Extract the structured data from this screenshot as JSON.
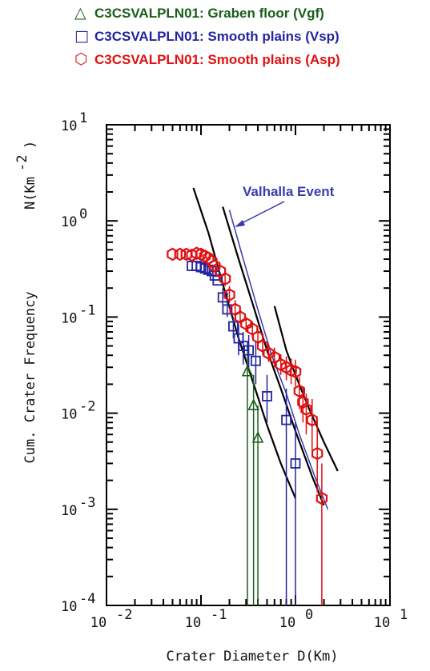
{
  "chart_data": {
    "type": "scatter",
    "x_scale": "log",
    "y_scale": "log",
    "xlim": [
      0.01,
      10
    ],
    "ylim": [
      0.0001,
      10
    ],
    "xlabel": "Crater Diameter D(Km)",
    "ylabel": "Cum. Crater Frequency",
    "ylabel_unit": "N(Km",
    "ylabel_unit_exp": "-2",
    "ylabel_unit_close": ")",
    "x_ticks": [
      {
        "value": 0.01,
        "base": "10",
        "exp": "-2"
      },
      {
        "value": 0.1,
        "base": "10",
        "exp": "-1"
      },
      {
        "value": 1,
        "base": "10",
        "exp": "0"
      },
      {
        "value": 10,
        "base": "10",
        "exp": "1"
      }
    ],
    "y_ticks": [
      {
        "value": 10,
        "base": "10",
        "exp": "1"
      },
      {
        "value": 1,
        "base": "10",
        "exp": "0"
      },
      {
        "value": 0.1,
        "base": "10",
        "exp": "-1"
      },
      {
        "value": 0.01,
        "base": "10",
        "exp": "-2"
      },
      {
        "value": 0.001,
        "base": "10",
        "exp": "-3"
      },
      {
        "value": 0.0001,
        "base": "10",
        "exp": "-4"
      }
    ],
    "legend_position": "top",
    "legend": [
      {
        "symbol": "△",
        "label": "C3CSVALPLN01: Graben floor (Vgf)",
        "color": "#1a5e1a"
      },
      {
        "symbol": "□",
        "label": "C3CSVALPLN01: Smooth plains (Vsp)",
        "color": "#2424a0"
      },
      {
        "symbol": "⬡",
        "label": "C3CSVALPLN01: Smooth plains (Asp)",
        "color": "#e01010"
      }
    ],
    "annotation": {
      "text": "Valhalla Event",
      "color": "#3a3ab0"
    },
    "series": [
      {
        "name": "C3CSVALPLN01: Graben floor (Vgf)",
        "marker": "triangle",
        "color": "#1a5e1a",
        "x": [
          0.31,
          0.36,
          0.4
        ],
        "y": [
          0.027,
          0.012,
          0.0055
        ],
        "err_down_to": [
          0.0001,
          0.0001,
          0.0001
        ],
        "err_up_to": [
          0.05,
          0.025,
          0.012
        ]
      },
      {
        "name": "C3CSVALPLN01: Smooth plains (Vsp)",
        "marker": "square",
        "color": "#2424a0",
        "x": [
          0.08,
          0.09,
          0.1,
          0.11,
          0.12,
          0.13,
          0.14,
          0.15,
          0.17,
          0.19,
          0.22,
          0.25,
          0.28,
          0.32,
          0.38,
          0.5,
          0.8,
          1.0
        ],
        "y": [
          0.34,
          0.34,
          0.33,
          0.32,
          0.31,
          0.3,
          0.27,
          0.24,
          0.16,
          0.12,
          0.08,
          0.06,
          0.05,
          0.045,
          0.035,
          0.015,
          0.0085,
          0.003
        ],
        "err_down_to": [
          null,
          null,
          null,
          null,
          null,
          null,
          null,
          null,
          0.13,
          0.1,
          0.06,
          0.04,
          0.032,
          0.03,
          0.02,
          0.008,
          0.0001,
          0.0001
        ],
        "err_up_to": [
          null,
          null,
          null,
          null,
          null,
          null,
          null,
          null,
          0.2,
          0.15,
          0.1,
          0.085,
          0.07,
          0.065,
          0.055,
          0.025,
          0.018,
          0.008
        ]
      },
      {
        "name": "C3CSVALPLN01: Smooth plains (Asp)",
        "marker": "hexagon",
        "color": "#e01010",
        "x": [
          0.05,
          0.06,
          0.07,
          0.08,
          0.09,
          0.1,
          0.11,
          0.12,
          0.13,
          0.14,
          0.16,
          0.18,
          0.2,
          0.23,
          0.26,
          0.3,
          0.35,
          0.4,
          0.45,
          0.52,
          0.6,
          0.7,
          0.8,
          0.9,
          1.0,
          1.1,
          1.2,
          1.3,
          1.5,
          1.7,
          1.9
        ],
        "y": [
          0.45,
          0.45,
          0.45,
          0.44,
          0.46,
          0.45,
          0.43,
          0.41,
          0.38,
          0.34,
          0.3,
          0.25,
          0.17,
          0.12,
          0.1,
          0.085,
          0.075,
          0.062,
          0.05,
          0.042,
          0.038,
          0.032,
          0.03,
          0.028,
          0.027,
          0.017,
          0.013,
          0.011,
          0.0085,
          0.0038,
          0.0013
        ],
        "err_down_to": [
          null,
          null,
          null,
          null,
          null,
          null,
          null,
          null,
          null,
          null,
          null,
          0.21,
          0.14,
          0.1,
          0.085,
          0.07,
          0.06,
          0.05,
          0.04,
          0.034,
          0.03,
          0.025,
          0.022,
          0.02,
          0.019,
          0.011,
          0.008,
          0.006,
          0.004,
          0.0015,
          0.0001
        ],
        "err_up_to": [
          null,
          null,
          null,
          null,
          null,
          null,
          null,
          null,
          null,
          null,
          null,
          0.3,
          0.21,
          0.15,
          0.12,
          0.1,
          0.09,
          0.075,
          0.062,
          0.052,
          0.048,
          0.041,
          0.039,
          0.037,
          0.036,
          0.024,
          0.019,
          0.016,
          0.014,
          0.008,
          0.003
        ]
      }
    ],
    "model_curves": [
      {
        "color": "#000000",
        "x": [
          0.083,
          0.12,
          0.17,
          0.25,
          0.35,
          0.5,
          0.7,
          1.0
        ],
        "y": [
          2.2,
          0.75,
          0.22,
          0.06,
          0.022,
          0.0075,
          0.003,
          0.0013
        ]
      },
      {
        "color": "#000000",
        "x": [
          0.17,
          0.25,
          0.35,
          0.5,
          0.7,
          1.0,
          1.5,
          2.0
        ],
        "y": [
          1.4,
          0.4,
          0.14,
          0.045,
          0.018,
          0.0065,
          0.0022,
          0.0011
        ]
      },
      {
        "color": "#000000",
        "x": [
          0.6,
          0.8,
          1.0,
          1.4,
          2.0,
          2.8
        ],
        "y": [
          0.13,
          0.045,
          0.025,
          0.011,
          0.005,
          0.0025
        ]
      },
      {
        "color": "#3a3ab0",
        "x": [
          0.2,
          0.28,
          0.4,
          0.56,
          0.8,
          1.1,
          1.6,
          2.2
        ],
        "y": [
          1.3,
          0.4,
          0.12,
          0.04,
          0.016,
          0.006,
          0.0022,
          0.001
        ]
      }
    ]
  }
}
